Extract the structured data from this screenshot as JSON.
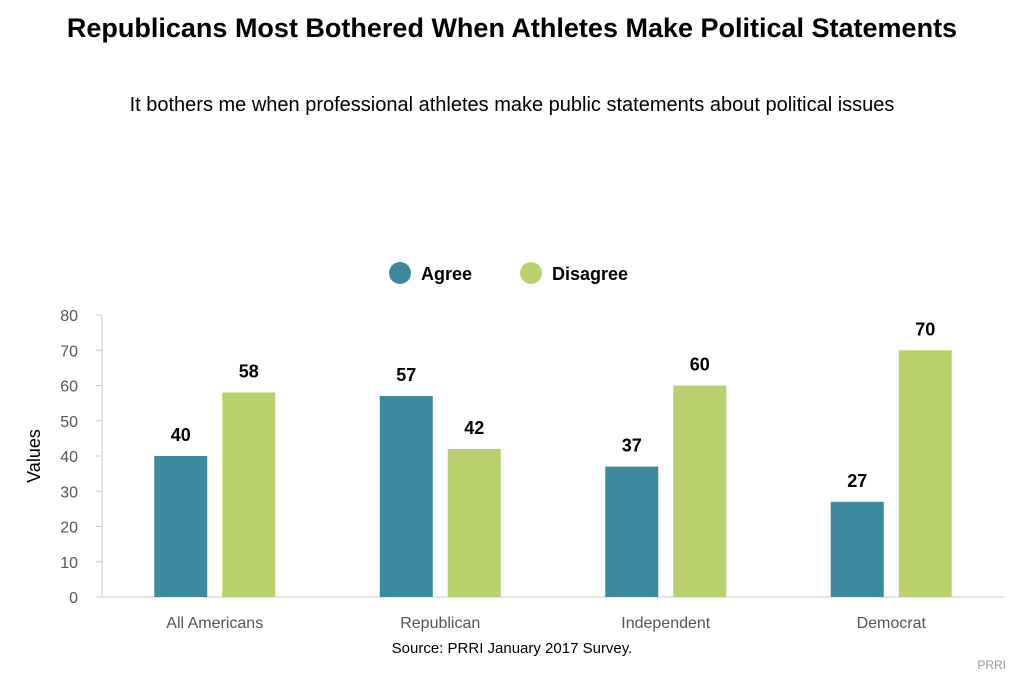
{
  "chart_data": {
    "type": "bar",
    "title": "Republicans Most Bothered When Athletes Make Political Statements",
    "subtitle": "It bothers me when professional athletes make public statements about political issues",
    "ylabel": "Values",
    "ylim": [
      0,
      80
    ],
    "yticks": [
      0,
      10,
      20,
      30,
      40,
      50,
      60,
      70,
      80
    ],
    "categories": [
      "All Americans",
      "Republican",
      "Independent",
      "Democrat"
    ],
    "series": [
      {
        "name": "Agree",
        "color": "#3d899e",
        "values": [
          40,
          57,
          37,
          27
        ]
      },
      {
        "name": "Disagree",
        "color": "#b8d16c",
        "values": [
          58,
          42,
          60,
          70
        ]
      }
    ],
    "legend": "top-center",
    "grid": false
  },
  "source": "Source: PRRI January 2017 Survey.",
  "credit": "PRRI"
}
